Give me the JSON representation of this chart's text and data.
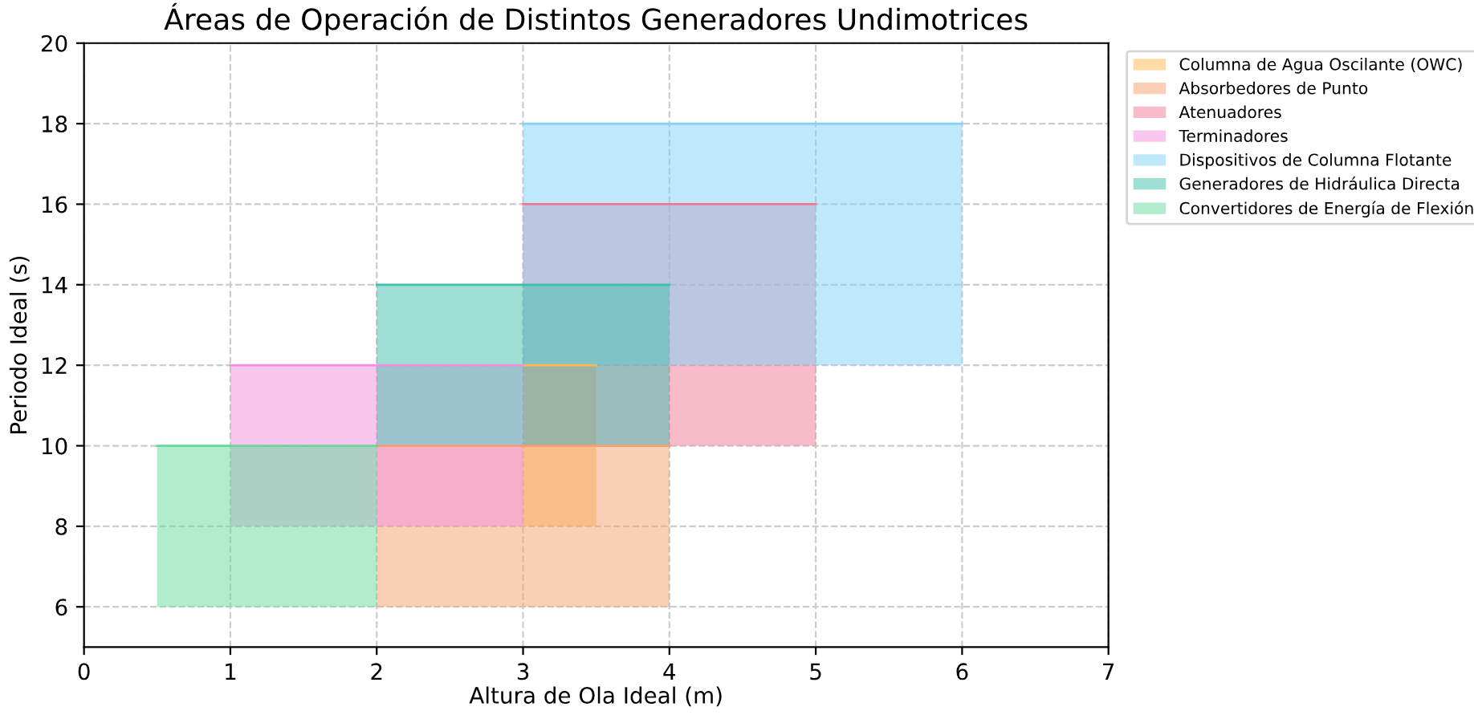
{
  "chart_data": {
    "type": "line",
    "title": "Áreas de Operación de Distintos Generadores Undimotrices",
    "xlabel": "Altura de Ola Ideal (m)",
    "ylabel": "Periodo Ideal (s)",
    "xlim": [
      0,
      7
    ],
    "xticks": [
      0,
      1,
      2,
      3,
      4,
      5,
      6,
      7
    ],
    "ylim": [
      5,
      20
    ],
    "yticks": [
      6,
      8,
      10,
      12,
      14,
      16,
      18,
      20
    ],
    "grid": true,
    "legend": "top right",
    "series": [
      {
        "name": "Columna de Agua Oscilante (OWC)",
        "color": "#ffb84d",
        "x": [
          3,
          3.25,
          3.5
        ],
        "lower": [
          8,
          8,
          8
        ],
        "upper": [
          12,
          12,
          12
        ],
        "values": [
          12,
          12,
          12
        ]
      },
      {
        "name": "Absorbedores de Punto",
        "color": "#f5a06e",
        "x": [
          2,
          3,
          4
        ],
        "lower": [
          6,
          6,
          6
        ],
        "upper": [
          10,
          10,
          10
        ],
        "values": [
          10,
          10,
          10
        ]
      },
      {
        "name": "Atenuadores",
        "color": "#f07896",
        "x": [
          3,
          4,
          5
        ],
        "lower": [
          10,
          10,
          10
        ],
        "upper": [
          16,
          16,
          16
        ],
        "values": [
          16,
          16,
          16
        ]
      },
      {
        "name": "Terminadores",
        "color": "#f28ee0",
        "x": [
          1,
          2,
          3
        ],
        "lower": [
          8,
          8,
          8
        ],
        "upper": [
          12,
          12,
          12
        ],
        "values": [
          12,
          12,
          12
        ]
      },
      {
        "name": "Dispositivos de Columna Flotante",
        "color": "#7fd3f7",
        "x": [
          3,
          4.5,
          6
        ],
        "lower": [
          12,
          12,
          12
        ],
        "upper": [
          18,
          18,
          18
        ],
        "values": [
          18,
          18,
          18
        ]
      },
      {
        "name": "Generadores de Hidráulica Directa",
        "color": "#3fbfae",
        "x": [
          2,
          3,
          4
        ],
        "lower": [
          10,
          10,
          10
        ],
        "upper": [
          14,
          14,
          14
        ],
        "values": [
          14,
          14,
          14
        ]
      },
      {
        "name": "Convertidores de Energía de Flexión",
        "color": "#63d99a",
        "x": [
          0.5,
          1.25,
          2
        ],
        "lower": [
          6,
          6,
          6
        ],
        "upper": [
          10,
          10,
          10
        ],
        "values": [
          10,
          10,
          10
        ]
      }
    ]
  }
}
